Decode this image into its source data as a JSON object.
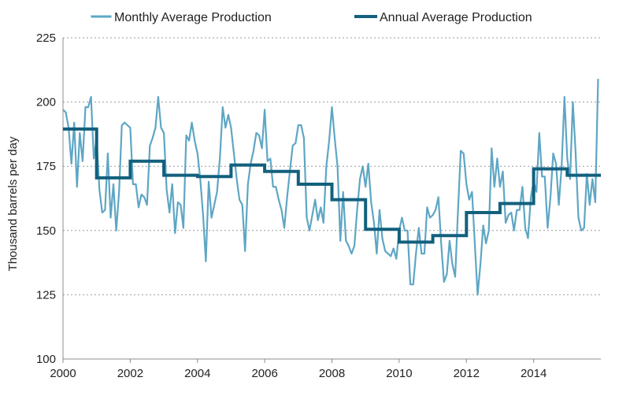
{
  "chart_data": {
    "type": "line",
    "title": "",
    "xlabel": "",
    "ylabel": "Thousand barrels per day",
    "xlim": [
      2000,
      2016
    ],
    "ylim": [
      100,
      225
    ],
    "x_ticks": [
      2000,
      2002,
      2004,
      2006,
      2008,
      2010,
      2012,
      2014
    ],
    "y_ticks": [
      100,
      125,
      150,
      175,
      200,
      225
    ],
    "grid": "horizontal dotted",
    "legend_position": "top",
    "series": [
      {
        "name": "Monthly Average Production",
        "color": "#5ea6c4",
        "x": [
          2000.0,
          2000.083,
          2000.167,
          2000.25,
          2000.333,
          2000.417,
          2000.5,
          2000.583,
          2000.667,
          2000.75,
          2000.833,
          2000.917,
          2001.0,
          2001.083,
          2001.167,
          2001.25,
          2001.333,
          2001.417,
          2001.5,
          2001.583,
          2001.667,
          2001.75,
          2001.833,
          2001.917,
          2002.0,
          2002.083,
          2002.167,
          2002.25,
          2002.333,
          2002.417,
          2002.5,
          2002.583,
          2002.667,
          2002.75,
          2002.833,
          2002.917,
          2003.0,
          2003.083,
          2003.167,
          2003.25,
          2003.333,
          2003.417,
          2003.5,
          2003.583,
          2003.667,
          2003.75,
          2003.833,
          2003.917,
          2004.0,
          2004.083,
          2004.167,
          2004.25,
          2004.333,
          2004.417,
          2004.5,
          2004.583,
          2004.667,
          2004.75,
          2004.833,
          2004.917,
          2005.0,
          2005.083,
          2005.167,
          2005.25,
          2005.333,
          2005.417,
          2005.5,
          2005.583,
          2005.667,
          2005.75,
          2005.833,
          2005.917,
          2006.0,
          2006.083,
          2006.167,
          2006.25,
          2006.333,
          2006.417,
          2006.5,
          2006.583,
          2006.667,
          2006.75,
          2006.833,
          2006.917,
          2007.0,
          2007.083,
          2007.167,
          2007.25,
          2007.333,
          2007.417,
          2007.5,
          2007.583,
          2007.667,
          2007.75,
          2007.833,
          2007.917,
          2008.0,
          2008.083,
          2008.167,
          2008.25,
          2008.333,
          2008.417,
          2008.5,
          2008.583,
          2008.667,
          2008.75,
          2008.833,
          2008.917,
          2009.0,
          2009.083,
          2009.167,
          2009.25,
          2009.333,
          2009.417,
          2009.5,
          2009.583,
          2009.667,
          2009.75,
          2009.833,
          2009.917,
          2010.0,
          2010.083,
          2010.167,
          2010.25,
          2010.333,
          2010.417,
          2010.5,
          2010.583,
          2010.667,
          2010.75,
          2010.833,
          2010.917,
          2011.0,
          2011.083,
          2011.167,
          2011.25,
          2011.333,
          2011.417,
          2011.5,
          2011.583,
          2011.667,
          2011.75,
          2011.833,
          2011.917,
          2012.0,
          2012.083,
          2012.167,
          2012.25,
          2012.333,
          2012.417,
          2012.5,
          2012.583,
          2012.667,
          2012.75,
          2012.833,
          2012.917,
          2013.0,
          2013.083,
          2013.167,
          2013.25,
          2013.333,
          2013.417,
          2013.5,
          2013.583,
          2013.667,
          2013.75,
          2013.833,
          2013.917,
          2014.0,
          2014.083,
          2014.167,
          2014.25,
          2014.333,
          2014.417,
          2014.5,
          2014.583,
          2014.667,
          2014.75,
          2014.833,
          2014.917,
          2015.0,
          2015.083,
          2015.167,
          2015.25,
          2015.333,
          2015.417,
          2015.5,
          2015.583,
          2015.667,
          2015.75,
          2015.833,
          2015.917
        ],
        "y": [
          197,
          196,
          190,
          176,
          192,
          167,
          188,
          177,
          198,
          198,
          202,
          178,
          186,
          166,
          157,
          158,
          180,
          155,
          168,
          150,
          165,
          191,
          192,
          191,
          190,
          168,
          168,
          159,
          164,
          163,
          160,
          183,
          186,
          190,
          202,
          190,
          188,
          166,
          157,
          168,
          149,
          161,
          160,
          151,
          187,
          185,
          192,
          185,
          180,
          170,
          156,
          138,
          169,
          155,
          160,
          165,
          178,
          198,
          190,
          195,
          190,
          180,
          170,
          162,
          160,
          142,
          168,
          176,
          181,
          188,
          187,
          182,
          197,
          177,
          178,
          167,
          167,
          162,
          158,
          151,
          163,
          173,
          183,
          184,
          191,
          191,
          186,
          155,
          150,
          156,
          162,
          154,
          159,
          153,
          175,
          185,
          198,
          186,
          175,
          146,
          165,
          146,
          144,
          141,
          144,
          158,
          170,
          175,
          167,
          176,
          161,
          153,
          141,
          158,
          147,
          142,
          141,
          140,
          143,
          139,
          150,
          155,
          150,
          150,
          129,
          129,
          141,
          151,
          141,
          141,
          159,
          155,
          156,
          158,
          163,
          145,
          130,
          133,
          146,
          137,
          132,
          158,
          181,
          180,
          168,
          162,
          165,
          145,
          125,
          137,
          152,
          145,
          150,
          182,
          167,
          178,
          167,
          173,
          153,
          156,
          157,
          150,
          158,
          158,
          167,
          151,
          147,
          163,
          169,
          165,
          188,
          171,
          171,
          151,
          163,
          180,
          176,
          160,
          175,
          202,
          178,
          170,
          200,
          180,
          155,
          150,
          151,
          172,
          160,
          170,
          161,
          209
        ]
      },
      {
        "name": "Annual Average Production",
        "color": "#12607d",
        "step": true,
        "years": [
          2000,
          2001,
          2002,
          2003,
          2004,
          2005,
          2006,
          2007,
          2008,
          2009,
          2010,
          2011,
          2012,
          2013,
          2014,
          2015
        ],
        "values": [
          189.5,
          170.5,
          177,
          171.5,
          171,
          175.5,
          173,
          168,
          162,
          150.5,
          145.5,
          148,
          157,
          160.5,
          174,
          171.5
        ]
      }
    ]
  }
}
